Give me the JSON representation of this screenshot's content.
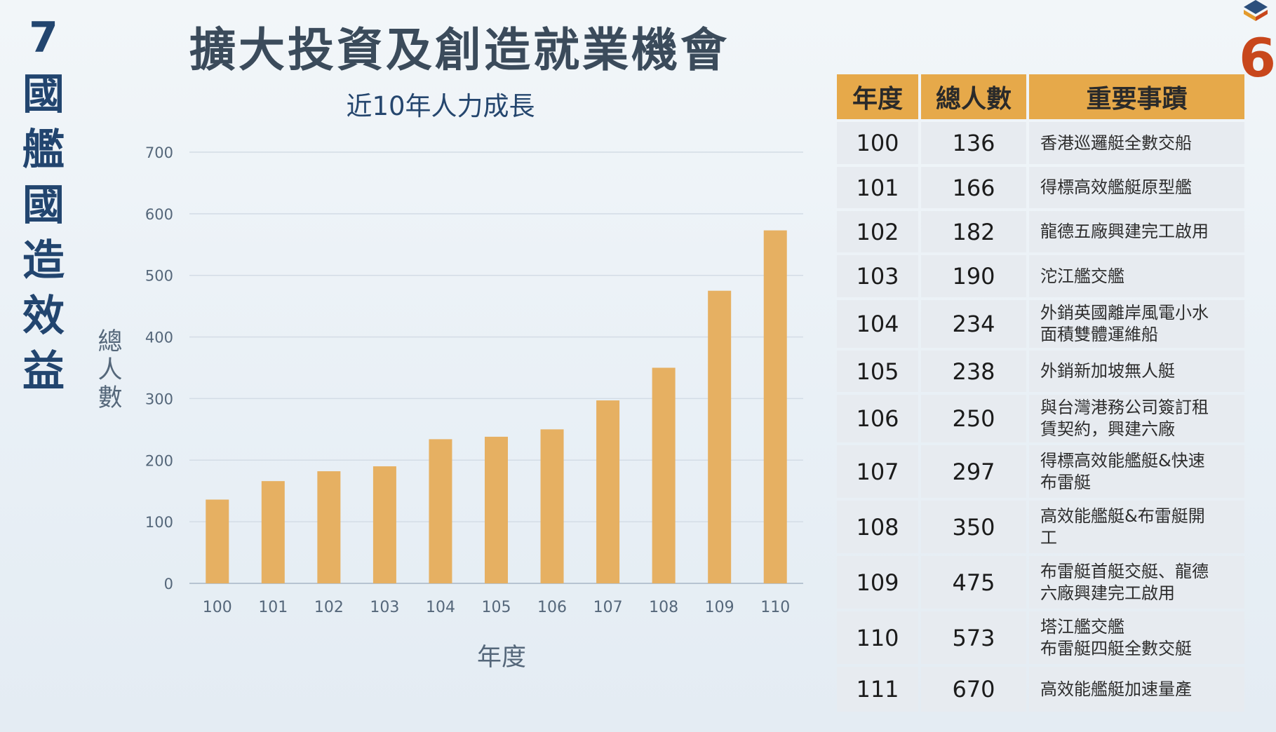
{
  "side_title": {
    "number": "7",
    "chars": [
      "國",
      "艦",
      "國",
      "造",
      "效",
      "益"
    ]
  },
  "main_title": "擴大投資及創造就業機會",
  "corner_number": "6",
  "colors": {
    "bar": "#e6b062",
    "header": "#e6a94a",
    "title": "#22456f"
  },
  "chart_data": {
    "type": "bar",
    "title": "近10年人力成長",
    "xlabel": "年度",
    "ylabel": "總人數",
    "categories": [
      "100",
      "101",
      "102",
      "103",
      "104",
      "105",
      "106",
      "107",
      "108",
      "109",
      "110"
    ],
    "values": [
      136,
      166,
      182,
      190,
      234,
      238,
      250,
      297,
      350,
      475,
      573
    ],
    "ylim": [
      0,
      700
    ],
    "yticks": [
      0,
      100,
      200,
      300,
      400,
      500,
      600,
      700
    ],
    "grid": true
  },
  "table": {
    "headers": [
      "年度",
      "總人數",
      "重要事蹟"
    ],
    "rows": [
      {
        "year": "100",
        "count": "136",
        "event": "香港巡邏艇全數交船"
      },
      {
        "year": "101",
        "count": "166",
        "event": "得標高效艦艇原型艦"
      },
      {
        "year": "102",
        "count": "182",
        "event": "龍德五廠興建完工啟用"
      },
      {
        "year": "103",
        "count": "190",
        "event": "沱江艦交艦"
      },
      {
        "year": "104",
        "count": "234",
        "event": "外銷英國離岸風電小水\n面積雙體運維船"
      },
      {
        "year": "105",
        "count": "238",
        "event": "外銷新加坡無人艇"
      },
      {
        "year": "106",
        "count": "250",
        "event": "與台灣港務公司簽訂租\n賃契約，興建六廠"
      },
      {
        "year": "107",
        "count": "297",
        "event": "得標高效能艦艇&快速\n布雷艇"
      },
      {
        "year": "108",
        "count": "350",
        "event": "高效能艦艇&布雷艇開\n工"
      },
      {
        "year": "109",
        "count": "475",
        "event": "布雷艇首艇交艇、龍德\n六廠興建完工啟用"
      },
      {
        "year": "110",
        "count": "573",
        "event": "塔江艦交艦\n布雷艇四艇全數交艇"
      },
      {
        "year": "111",
        "count": "670",
        "event": "高效能艦艇加速量產"
      }
    ]
  }
}
